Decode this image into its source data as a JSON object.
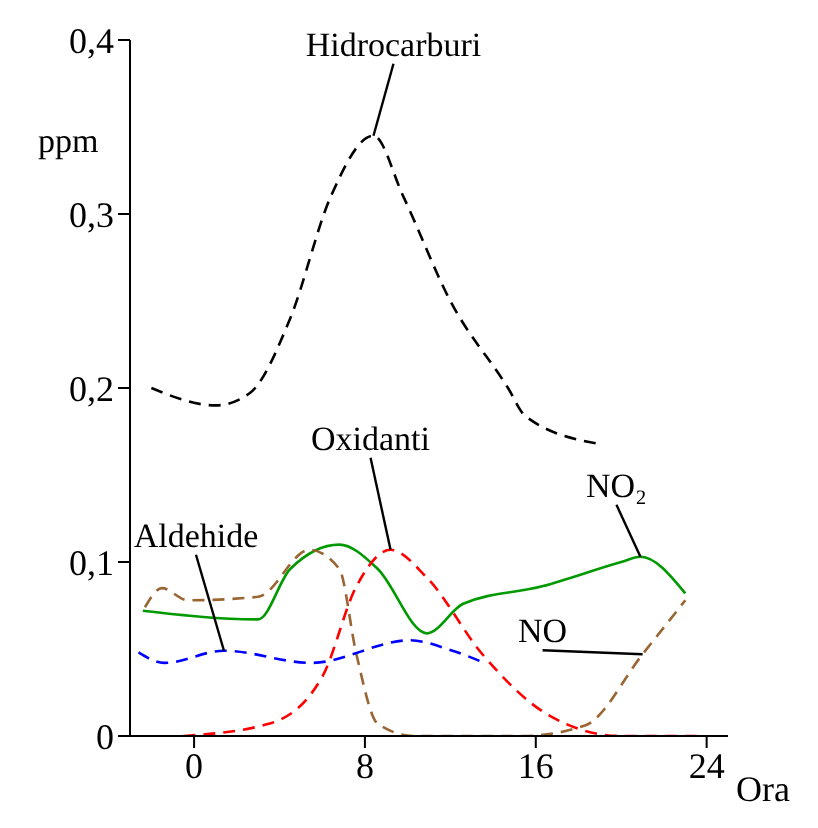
{
  "chart_data": {
    "type": "line",
    "ylabel": "ppm",
    "xlabel": "Ora",
    "xlim": [
      -3,
      25
    ],
    "xticks": [
      0,
      8,
      16,
      24
    ],
    "ylim": [
      0,
      0.4
    ],
    "yticks": [
      {
        "value": 0,
        "label": "0"
      },
      {
        "value": 0.1,
        "label": "0,1"
      },
      {
        "value": 0.2,
        "label": "0,2"
      },
      {
        "value": 0.3,
        "label": "0,3"
      },
      {
        "value": 0.4,
        "label": "0,4"
      }
    ],
    "grid": false,
    "legend": false,
    "marker": "none",
    "series": [
      {
        "color": "#000000",
        "line_style": "dashed",
        "x": [
          -2,
          1,
          2.6,
          4.5,
          6.4,
          8.4,
          9.8,
          12,
          14.7,
          15.5,
          18.9
        ],
        "values": [
          0.2,
          0.19,
          0.197,
          0.24,
          0.31,
          0.345,
          0.31,
          0.25,
          0.2,
          0.184,
          0.168
        ]
      },
      {
        "color": "#009900",
        "line_style": "solid",
        "x": [
          -2.4,
          3,
          4.5,
          6.8,
          8.6,
          10.9,
          12.6,
          16.3,
          20,
          20.9,
          23
        ],
        "values": [
          0.072,
          0.067,
          0.096,
          0.11,
          0.096,
          0.059,
          0.076,
          0.086,
          0.1,
          0.103,
          0.082
        ]
      },
      {
        "color": "#996633",
        "line_style": "dashed",
        "x": [
          -2.3,
          -1.5,
          -0.3,
          3,
          5.4,
          6.8,
          7.6,
          8.6,
          10.3,
          15.4,
          18.3,
          21,
          23
        ],
        "values": [
          0.074,
          0.085,
          0.078,
          0.08,
          0.107,
          0.096,
          0.047,
          0.007,
          0,
          0,
          0.006,
          0.047,
          0.078
        ]
      },
      {
        "color": "#ff0000",
        "line_style": "dashed",
        "x": [
          -0.5,
          3.5,
          6,
          7.6,
          9.2,
          10.9,
          13.5,
          16.6,
          20,
          23.9
        ],
        "values": [
          0,
          0.007,
          0.034,
          0.086,
          0.107,
          0.091,
          0.047,
          0.012,
          0,
          0
        ]
      },
      {
        "color": "#0000ff",
        "line_style": "dashed",
        "x": [
          -2.6,
          -1.4,
          1.4,
          5.5,
          10.1,
          12.1,
          13.6
        ],
        "values": [
          0.048,
          0.042,
          0.049,
          0.042,
          0.055,
          0.049,
          0.042
        ]
      }
    ],
    "annotations": [
      {
        "text": "Hidrocarburi",
        "x": 8.4,
        "y": 0.345
      },
      {
        "text": "Oxidanti",
        "x": 9.2,
        "y": 0.107
      },
      {
        "text": "Aldehide",
        "x": 1.4,
        "y": 0.049
      },
      {
        "text": "NO₂",
        "x": 20.9,
        "y": 0.103
      },
      {
        "text": "NO",
        "x": 21,
        "y": 0.047
      }
    ]
  }
}
